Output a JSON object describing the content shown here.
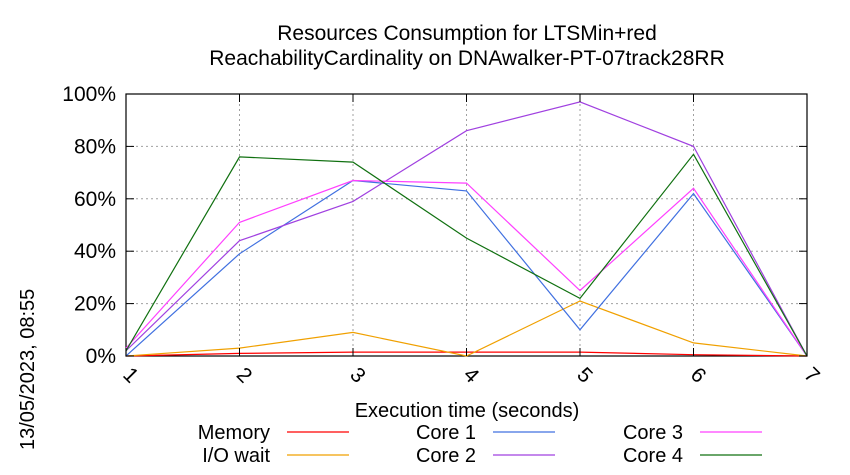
{
  "title_line1": "Resources Consumption for LTSMin+red",
  "title_line2": "ReachabilityCardinality on DNAwalker-PT-07track28RR",
  "timestamp": "13/05/2023, 08:55",
  "chart_data": {
    "type": "line",
    "title": "Resources Consumption for LTSMin+red ReachabilityCardinality on DNAwalker-PT-07track28RR",
    "xlabel": "Execution time (seconds)",
    "ylabel": "",
    "x": [
      1,
      2,
      3,
      4,
      5,
      6,
      7
    ],
    "x_ticks": [
      "1",
      "2",
      "3",
      "4",
      "5",
      "6",
      "7"
    ],
    "y_ticks": [
      "0%",
      "20%",
      "40%",
      "60%",
      "80%",
      "100%"
    ],
    "xlim": [
      1,
      7
    ],
    "ylim": [
      0,
      100
    ],
    "grid": true,
    "legend_position": "bottom",
    "series": [
      {
        "name": "Memory",
        "color": "#ff0000",
        "values": [
          0,
          1,
          1.5,
          1.5,
          1.5,
          0.5,
          0
        ]
      },
      {
        "name": "I/O wait",
        "color": "#f0a000",
        "values": [
          0,
          3,
          9,
          0,
          21,
          5,
          0
        ]
      },
      {
        "name": "Core 1",
        "color": "#4070e0",
        "values": [
          0,
          39,
          67,
          63,
          10,
          62,
          0
        ]
      },
      {
        "name": "Core 2",
        "color": "#a040e0",
        "values": [
          2,
          44,
          59,
          86,
          97,
          80,
          0
        ]
      },
      {
        "name": "Core 3",
        "color": "#ff40ff",
        "values": [
          3,
          51,
          67,
          66,
          25,
          64,
          0
        ]
      },
      {
        "name": "Core 4",
        "color": "#107010",
        "values": [
          2,
          76,
          74,
          45,
          22,
          77,
          0
        ]
      }
    ]
  }
}
